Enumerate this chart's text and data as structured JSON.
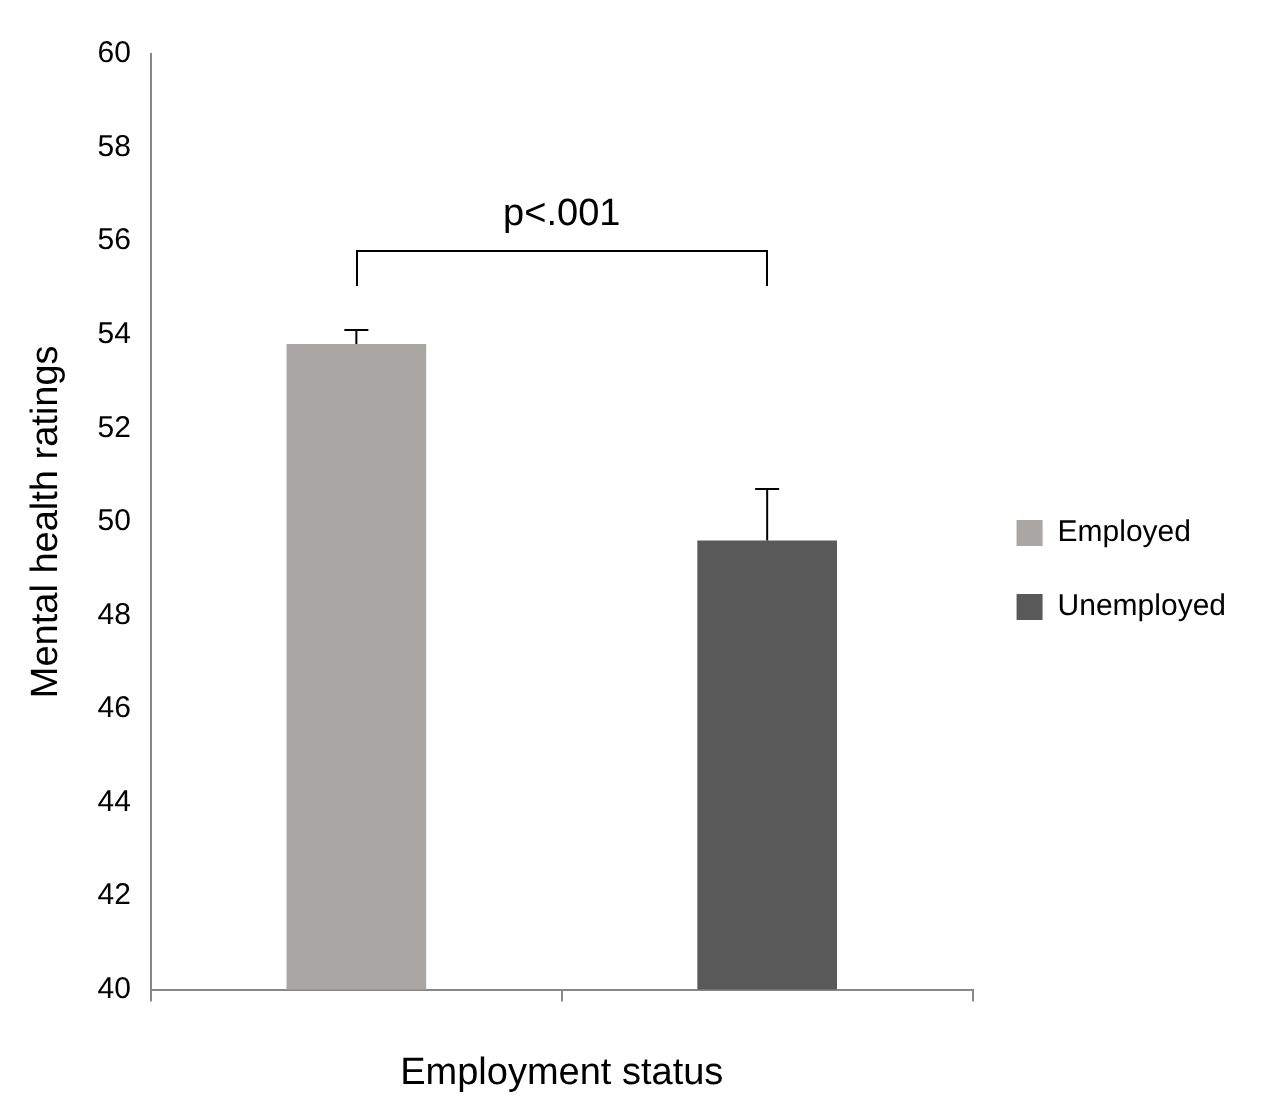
{
  "chart_data": {
    "type": "bar",
    "ylabel": "Mental health ratings",
    "xlabel": "Employment status",
    "categories": [
      null,
      null
    ],
    "series": [
      {
        "name": "Employed",
        "color": "#aaa6a3",
        "values": [
          53.8,
          null
        ],
        "errors": [
          [
            53.8,
            54.1
          ],
          null
        ]
      },
      {
        "name": "Unemployed",
        "color": "#595959",
        "values": [
          null,
          49.6
        ],
        "errors": [
          null,
          [
            49.6,
            50.7
          ]
        ]
      }
    ],
    "ylim": [
      40,
      60
    ],
    "yticks": [
      40,
      42,
      44,
      46,
      48,
      50,
      52,
      54,
      56,
      58,
      60
    ],
    "grid": false,
    "legend": "right",
    "annotations": [
      "p<.001"
    ]
  }
}
